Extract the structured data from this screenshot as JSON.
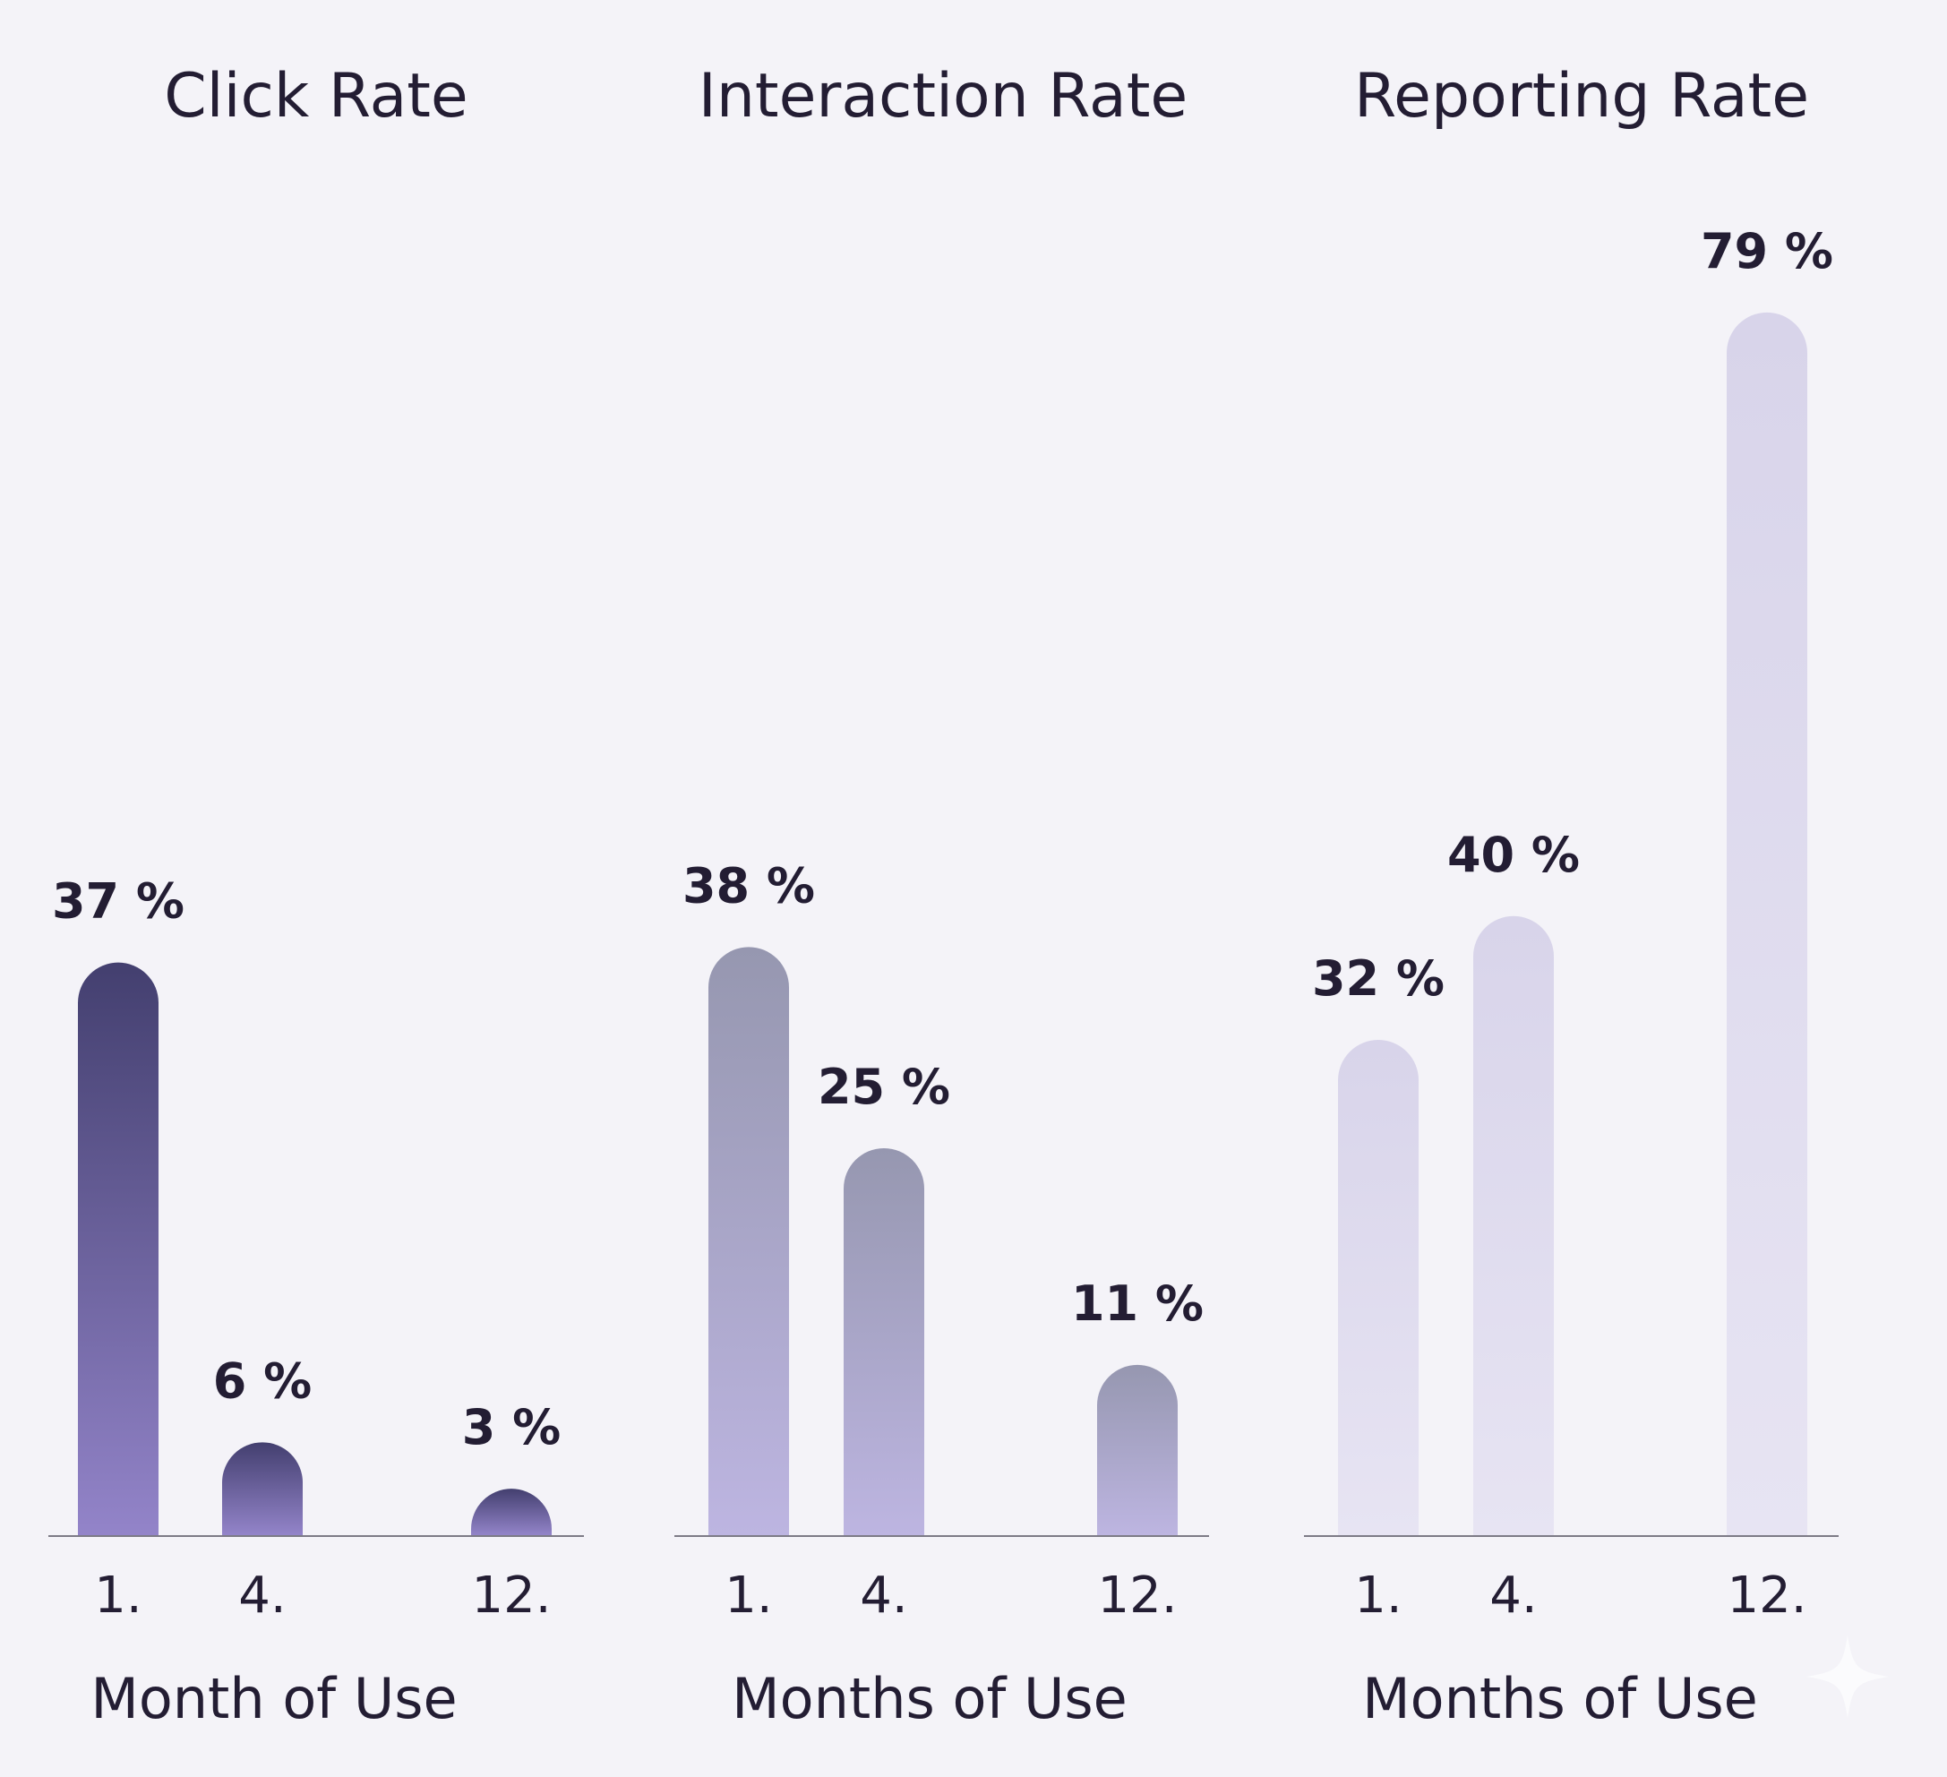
{
  "chart_data": [
    {
      "type": "bar",
      "title": "Click Rate",
      "xlabel": "Month of Use",
      "ylabel": "",
      "categories": [
        "1.",
        "4.",
        "12."
      ],
      "values": [
        37,
        6,
        3
      ],
      "value_labels": [
        "37 %",
        "6 %",
        "3 %"
      ],
      "ylim": [
        0,
        80
      ],
      "grid": false,
      "colors": {
        "top": "#433f6f",
        "bottom": "#9384c9"
      }
    },
    {
      "type": "bar",
      "title": "Interaction Rate",
      "xlabel": "Months of Use",
      "ylabel": "",
      "categories": [
        "1.",
        "4.",
        "12."
      ],
      "values": [
        38,
        25,
        11
      ],
      "value_labels": [
        "38 %",
        "25 %",
        "11 %"
      ],
      "ylim": [
        0,
        80
      ],
      "grid": false,
      "colors": {
        "top": "#9697b0",
        "bottom": "#bdb5e1"
      }
    },
    {
      "type": "bar",
      "title": "Reporting Rate",
      "xlabel": "Months of Use",
      "ylabel": "",
      "categories": [
        "1.",
        "4.",
        "12."
      ],
      "values": [
        32,
        40,
        79
      ],
      "value_labels": [
        "32 %",
        "40 %",
        "79 %"
      ],
      "ylim": [
        0,
        80
      ],
      "grid": false,
      "colors": {
        "top": "#d8d4ea",
        "bottom": "#e7e4f3"
      }
    }
  ]
}
